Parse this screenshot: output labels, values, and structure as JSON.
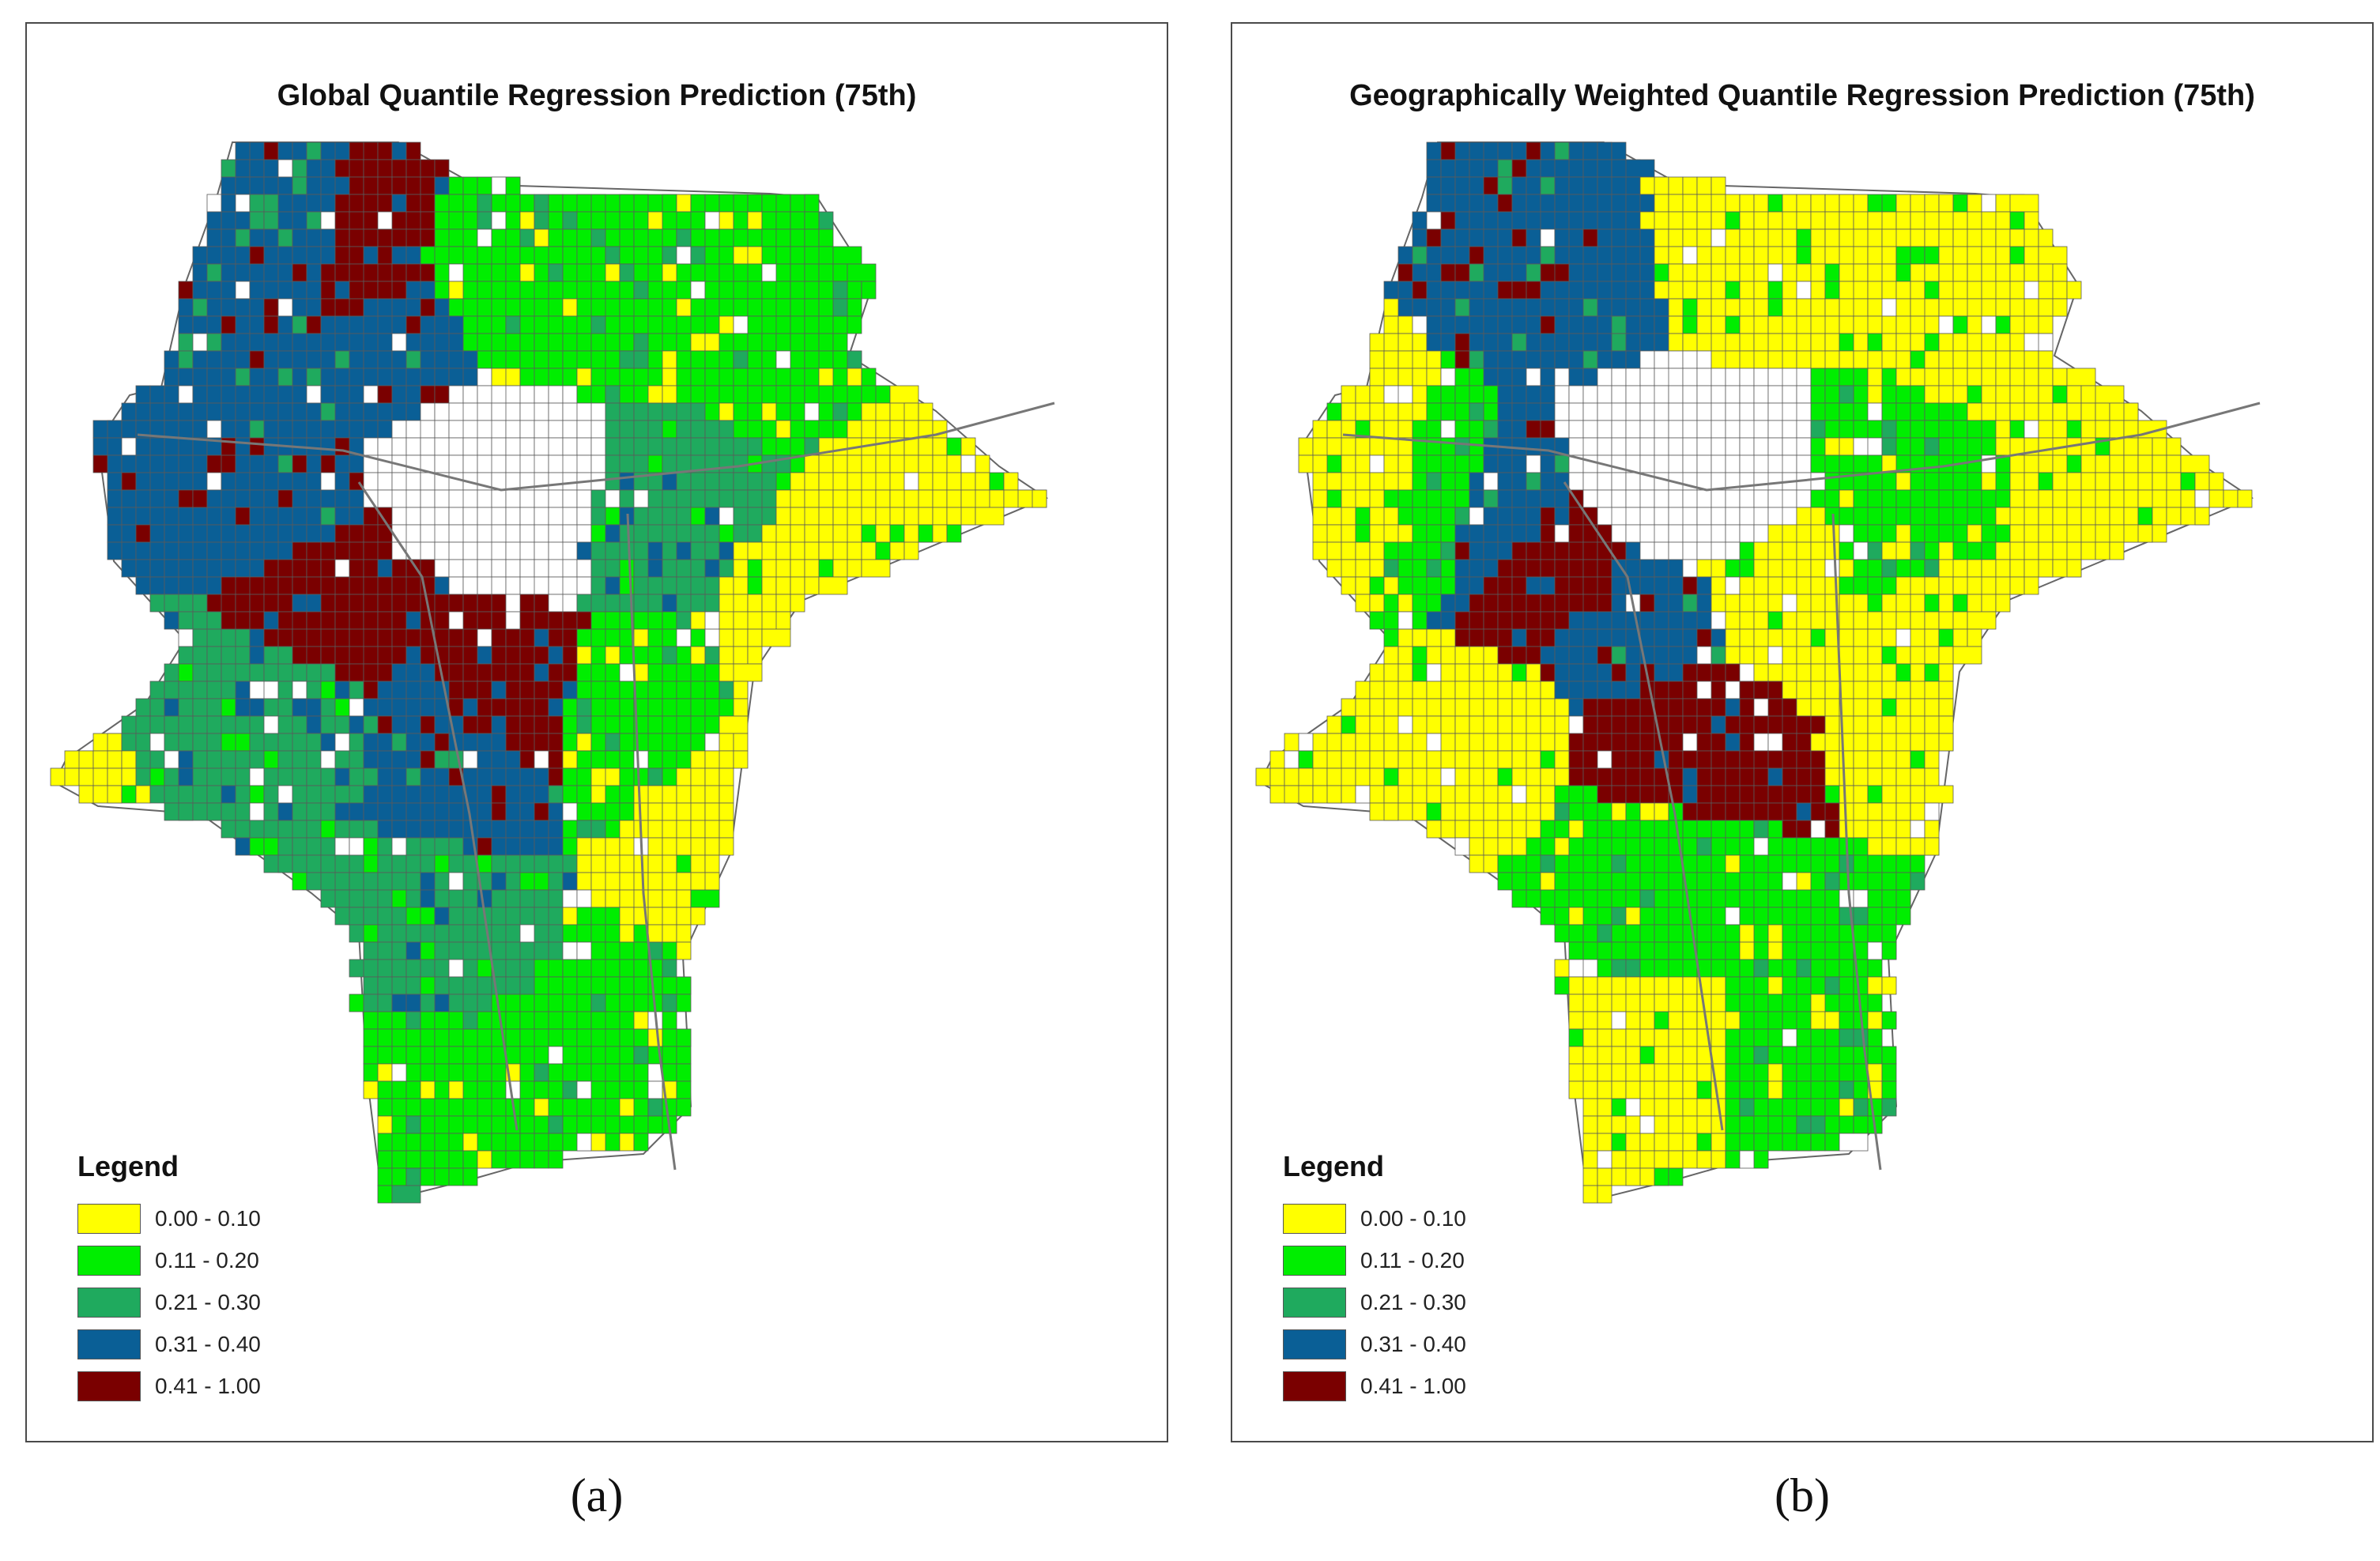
{
  "colors": {
    "class_1": "#ffff00",
    "class_2": "#00ee00",
    "class_3": "#1faa5e",
    "class_4": "#0a5f96",
    "class_5": "#7a0000",
    "outline": "#666666"
  },
  "legend_title": "Legend",
  "legend_classes": [
    {
      "label": "0.00 - 0.10",
      "color_key": "class_1"
    },
    {
      "label": "0.11 - 0.20",
      "color_key": "class_2"
    },
    {
      "label": "0.21 - 0.30",
      "color_key": "class_3"
    },
    {
      "label": "0.31 - 0.40",
      "color_key": "class_4"
    },
    {
      "label": "0.41 - 1.00",
      "color_key": "class_5"
    }
  ],
  "panels": [
    {
      "title": "Global Quantile Regression Prediction (75th)",
      "caption": "(a)"
    },
    {
      "title": "Geographically Weighted Quantile Regression Prediction (75th)",
      "caption": "(b)"
    }
  ]
}
